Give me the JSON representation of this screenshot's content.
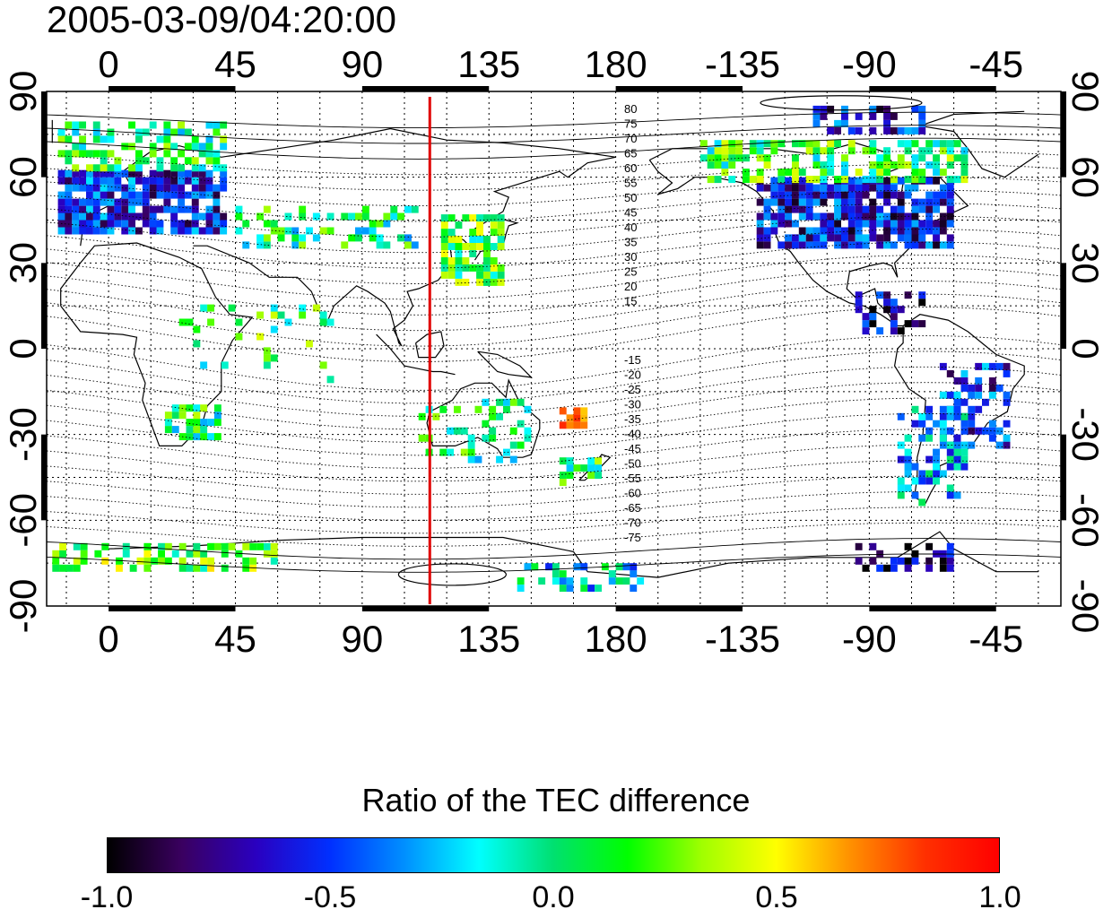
{
  "title": "2005-03-09/04:20:00",
  "map": {
    "top_longitude_labels": [
      "0",
      "45",
      "90",
      "135",
      "180",
      "-135",
      "-90",
      "-45"
    ],
    "bottom_longitude_labels": [
      "0",
      "45",
      "90",
      "135",
      "180",
      "-135",
      "-90",
      "-45"
    ],
    "left_latitude_labels": [
      "90",
      "60",
      "30",
      "0",
      "-30",
      "-60",
      "-90"
    ],
    "right_latitude_labels": [
      "90",
      "60",
      "30",
      "0",
      "-30",
      "-60",
      "-90"
    ],
    "marker_longitude": 114,
    "contour_labels_north": [
      "80",
      "75",
      "70",
      "65",
      "60",
      "55",
      "50",
      "45",
      "40",
      "35",
      "30",
      "25",
      "20",
      "15"
    ],
    "contour_labels_south": [
      "-15",
      "-20",
      "-25",
      "-30",
      "-35",
      "-40",
      "-45",
      "-50",
      "-55",
      "-60",
      "-65",
      "-70",
      "-75"
    ],
    "marker_color": "#e00000"
  },
  "colorbar": {
    "title": "Ratio of the TEC difference",
    "ticks": [
      "-1.0",
      "-0.5",
      "0.0",
      "0.5",
      "1.0"
    ],
    "colormap": [
      "#000000",
      "#3a0060",
      "#2a00c0",
      "#0030ff",
      "#0090ff",
      "#00ffff",
      "#00e070",
      "#00ff00",
      "#a0ff00",
      "#ffff00",
      "#ff9000",
      "#ff3000",
      "#ff0000"
    ]
  }
}
